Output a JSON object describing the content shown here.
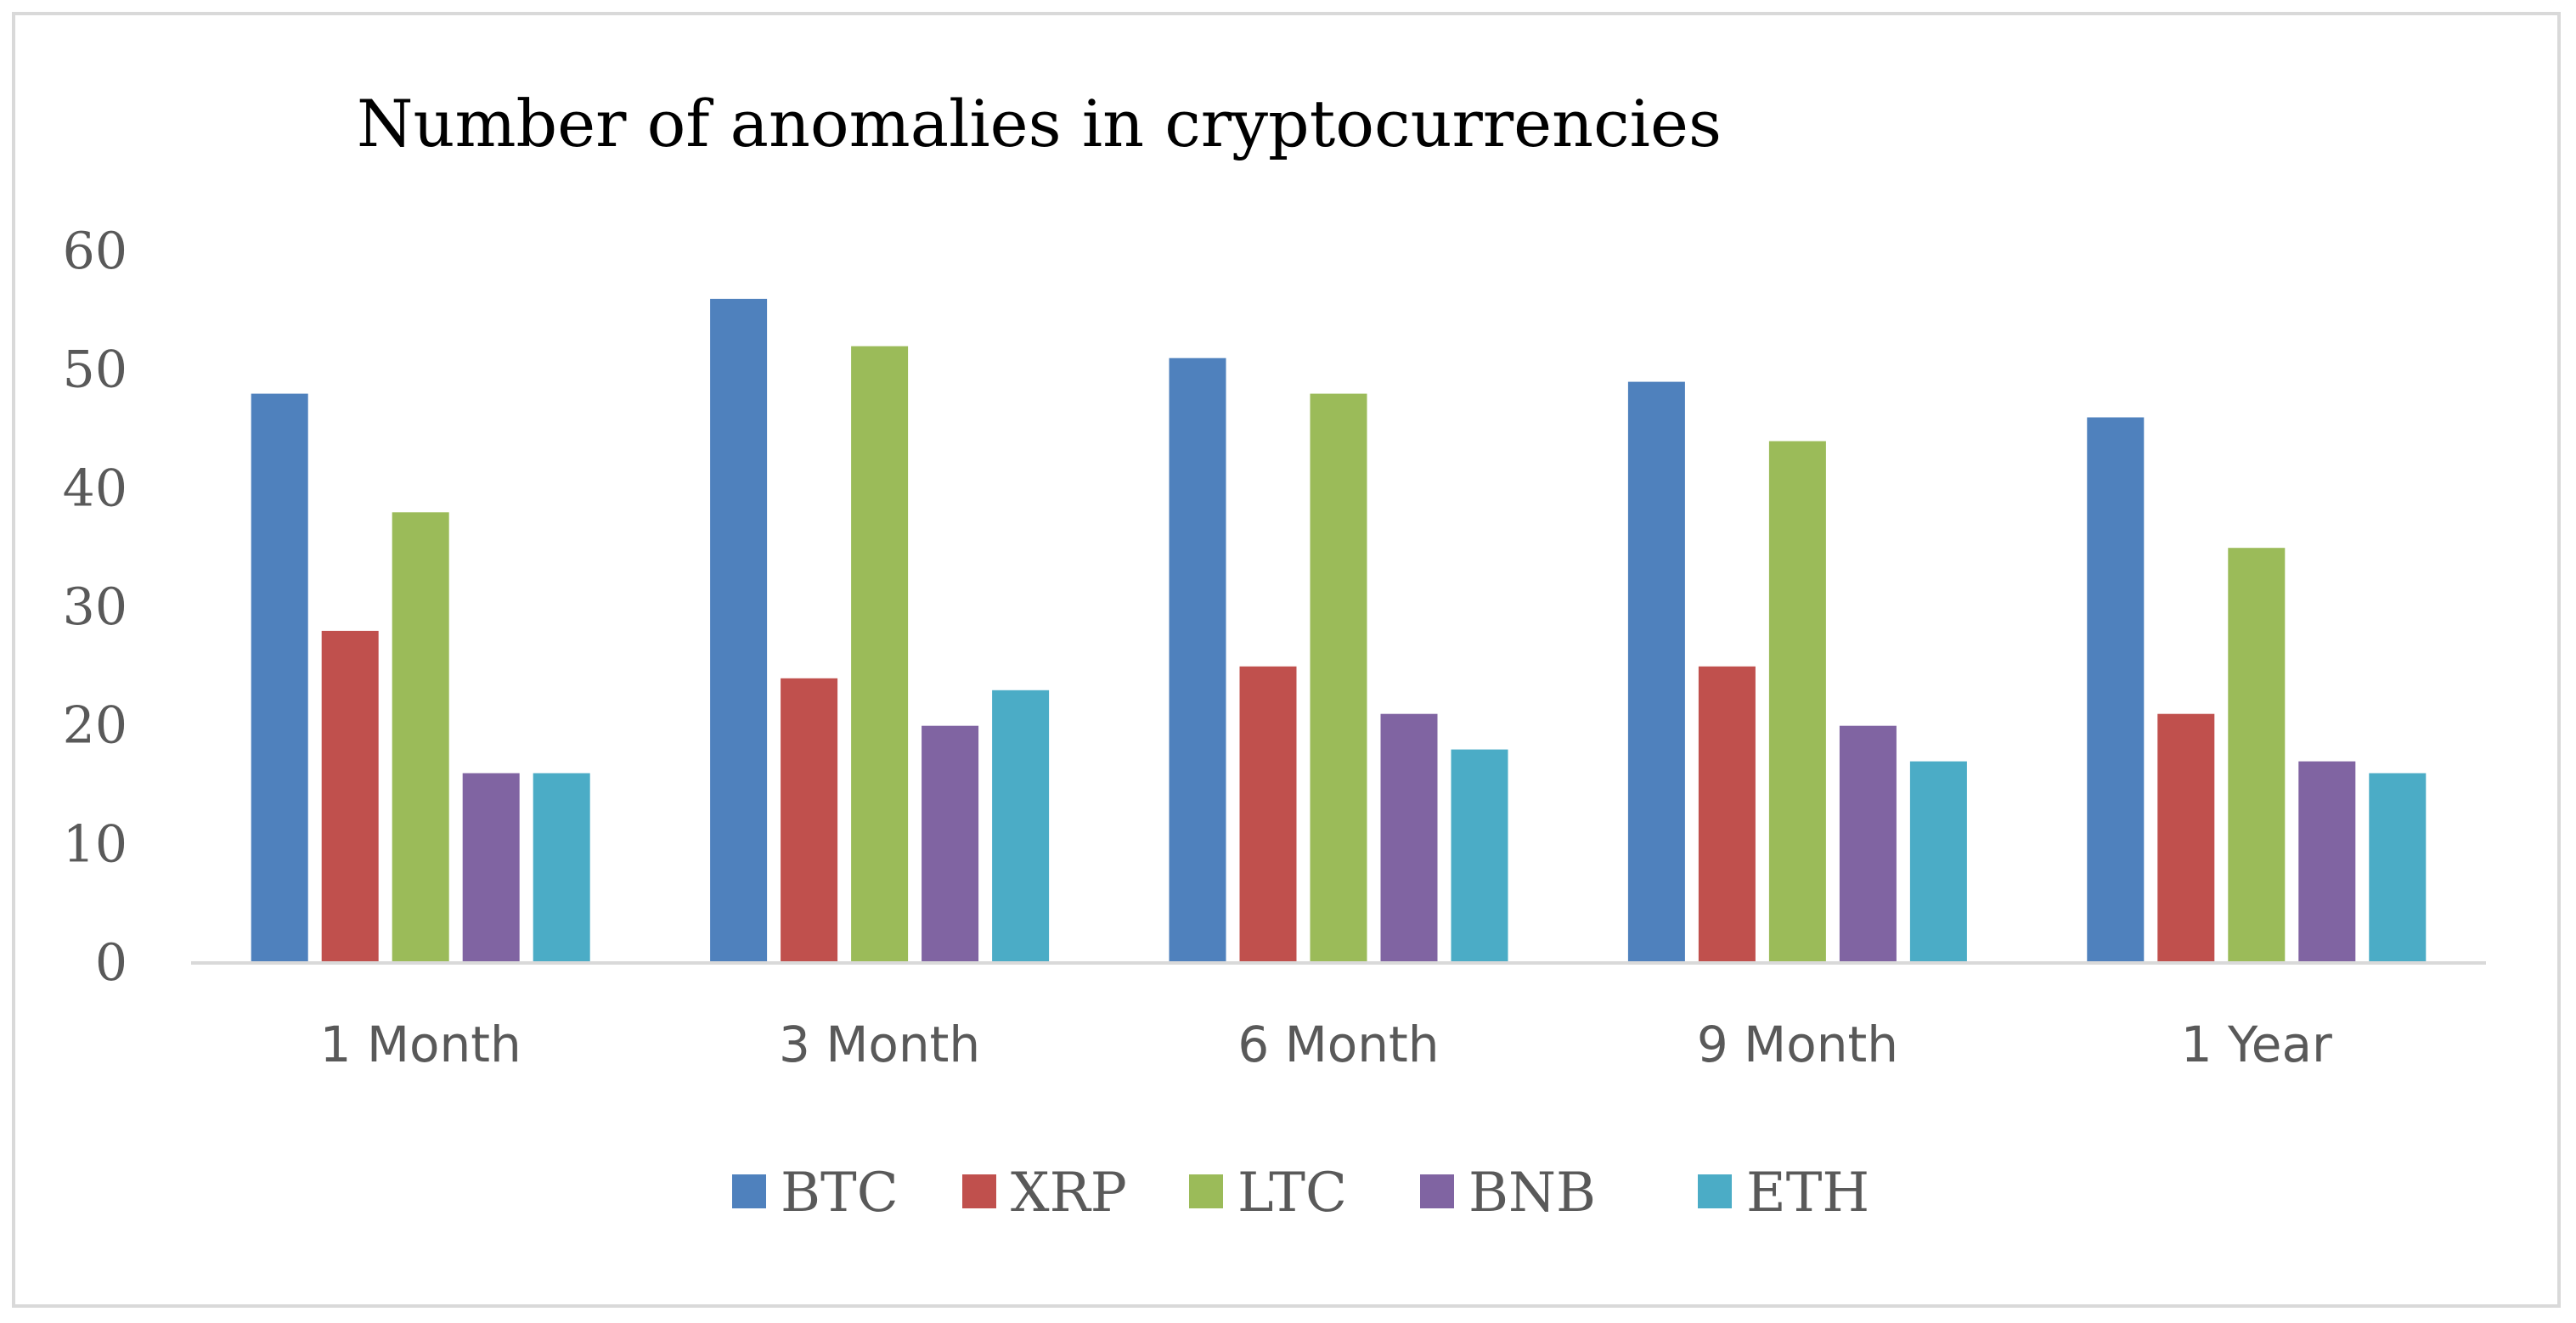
{
  "chart_data": {
    "type": "bar",
    "title": "Number of anomalies in cryptocurrencies",
    "xlabel": "",
    "ylabel": "",
    "ylim": [
      0,
      60
    ],
    "yticks": [
      "0",
      "10",
      "20",
      "30",
      "40",
      "50",
      "60"
    ],
    "grid": false,
    "legend_position": "bottom",
    "categories": [
      "1 Month",
      "3 Month",
      "6 Month",
      "9 Month",
      "1 Year"
    ],
    "series": [
      {
        "name": "BTC",
        "color": "#4f81bd",
        "values": [
          48,
          56,
          51,
          49,
          46
        ]
      },
      {
        "name": "XRP",
        "color": "#c0504d",
        "values": [
          28,
          24,
          25,
          25,
          21
        ]
      },
      {
        "name": "LTC",
        "color": "#9bbb59",
        "values": [
          38,
          52,
          48,
          44,
          35
        ]
      },
      {
        "name": "BNB",
        "color": "#8064a2",
        "values": [
          16,
          20,
          21,
          20,
          17
        ]
      },
      {
        "name": "ETH",
        "color": "#4bacc6",
        "values": [
          16,
          23,
          18,
          17,
          16
        ]
      }
    ]
  }
}
